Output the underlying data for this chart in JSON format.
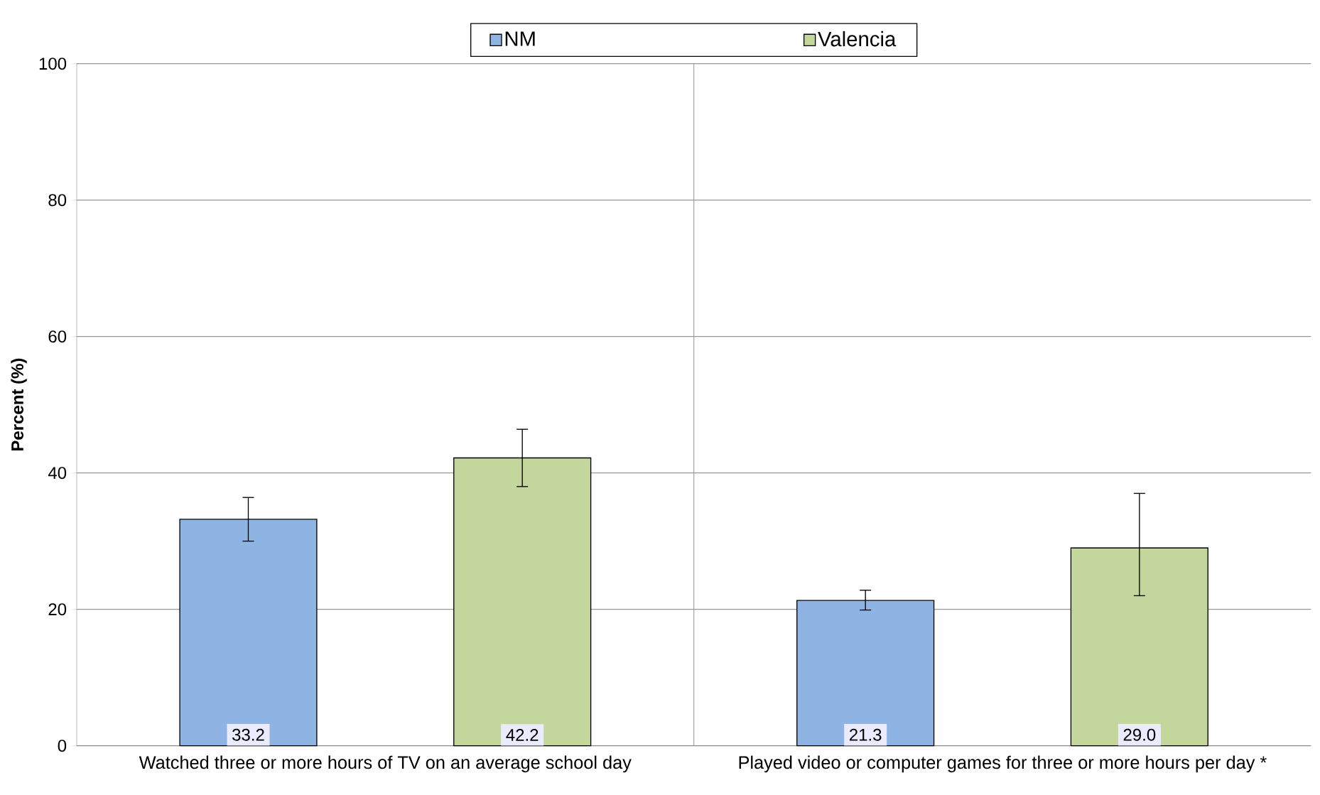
{
  "chart_data": {
    "type": "bar",
    "ylabel": "Percent (%)",
    "categories": [
      "Watched three or more hours of TV on an average school day",
      "Played video or computer games for three or more hours per day *"
    ],
    "series": [
      {
        "name": "NM",
        "color": "#8eb4e3",
        "values": [
          33.2,
          21.3
        ],
        "errors": [
          [
            30.0,
            36.4
          ],
          [
            19.9,
            22.8
          ]
        ],
        "value_labels": [
          "33.2",
          "21.3"
        ]
      },
      {
        "name": "Valencia",
        "color": "#c3d69b",
        "values": [
          42.2,
          29.0
        ],
        "errors": [
          [
            38.0,
            46.4
          ],
          [
            22.0,
            37.0
          ]
        ],
        "value_labels": [
          "42.2",
          "29.0"
        ]
      }
    ],
    "ylim": [
      0,
      100
    ],
    "yticks": [
      0,
      20,
      40,
      60,
      80,
      100
    ],
    "grid": true,
    "legend": "top"
  }
}
